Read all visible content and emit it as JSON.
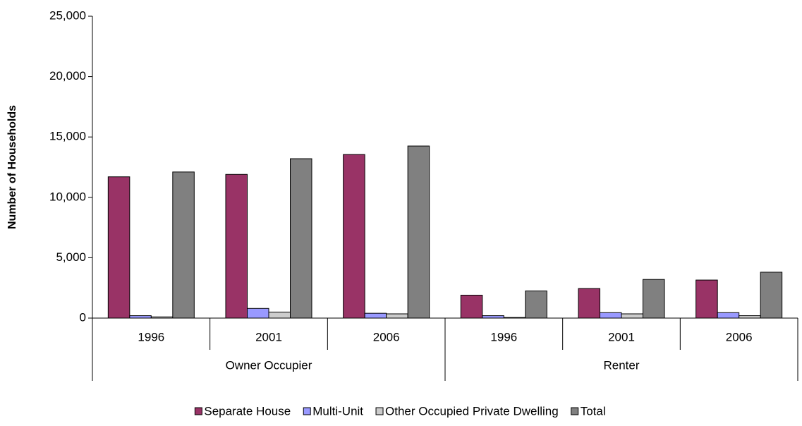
{
  "chart_data": {
    "type": "bar",
    "y_label": "Number of Households",
    "groups": [
      {
        "name": "Owner Occupier",
        "categories": [
          "1996",
          "2001",
          "2006"
        ]
      },
      {
        "name": "Renter",
        "categories": [
          "1996",
          "2001",
          "2006"
        ]
      }
    ],
    "series": [
      {
        "name": "Separate House",
        "color": "#993366",
        "values": [
          11700,
          11900,
          13550,
          1900,
          2450,
          3150
        ]
      },
      {
        "name": "Multi-Unit",
        "color": "#9999ff",
        "values": [
          200,
          800,
          400,
          200,
          450,
          450
        ]
      },
      {
        "name": "Other Occupied Private Dwelling",
        "color": "#cccccc",
        "values": [
          100,
          500,
          350,
          50,
          350,
          200
        ]
      },
      {
        "name": "Total",
        "color": "#808080",
        "values": [
          12100,
          13200,
          14250,
          2250,
          3200,
          3800
        ]
      }
    ],
    "ylim": [
      0,
      25000
    ],
    "yticks": [
      0,
      {
        "value": 5000,
        "label": "5,000"
      },
      {
        "value": 10000,
        "label": "10,000"
      },
      {
        "value": 15000,
        "label": "15,000"
      },
      {
        "value": 20000,
        "label": "20,000"
      },
      {
        "value": 25000,
        "label": "25,000"
      }
    ],
    "legend": "bottom"
  }
}
